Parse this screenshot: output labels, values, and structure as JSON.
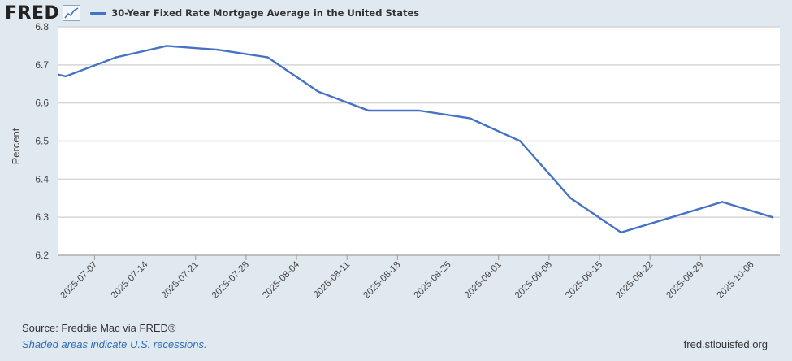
{
  "header": {
    "logo_text": "FRED",
    "logo_icon": "line-chart-icon",
    "legend_label": "30-Year Fixed Rate Mortgage Average in the United States",
    "legend_color": "#4572c4"
  },
  "chart_data": {
    "type": "line",
    "title": "30-Year Fixed Rate Mortgage Average in the United States",
    "ylabel": "Percent",
    "xlabel": "",
    "ylim": [
      6.2,
      6.8
    ],
    "yticks": [
      "6.2",
      "6.3",
      "6.4",
      "6.5",
      "6.6",
      "6.7",
      "6.8"
    ],
    "xticks": [
      "2025-07-07",
      "2025-07-14",
      "2025-07-21",
      "2025-07-28",
      "2025-08-04",
      "2025-08-11",
      "2025-08-18",
      "2025-08-25",
      "2025-09-01",
      "2025-09-08",
      "2025-09-15",
      "2025-09-22",
      "2025-09-29",
      "2025-10-06"
    ],
    "xlim": [
      "2025-07-02",
      "2025-10-10"
    ],
    "grid": true,
    "series": [
      {
        "name": "30-Year Fixed Rate Mortgage Average in the United States",
        "color": "#4572c4",
        "x": [
          "2025-07-03",
          "2025-07-10",
          "2025-07-17",
          "2025-07-24",
          "2025-07-31",
          "2025-08-07",
          "2025-08-14",
          "2025-08-21",
          "2025-08-28",
          "2025-09-04",
          "2025-09-11",
          "2025-09-18",
          "2025-09-25",
          "2025-10-02",
          "2025-10-09"
        ],
        "values": [
          6.67,
          6.72,
          6.75,
          6.74,
          6.72,
          6.63,
          6.58,
          6.58,
          6.56,
          6.5,
          6.35,
          6.26,
          6.3,
          6.34,
          6.3
        ]
      }
    ]
  },
  "footer": {
    "source": "Source: Freddie Mac via FRED®",
    "note": "Shaded areas indicate U.S. recessions.",
    "url": "fred.stlouisfed.org"
  }
}
